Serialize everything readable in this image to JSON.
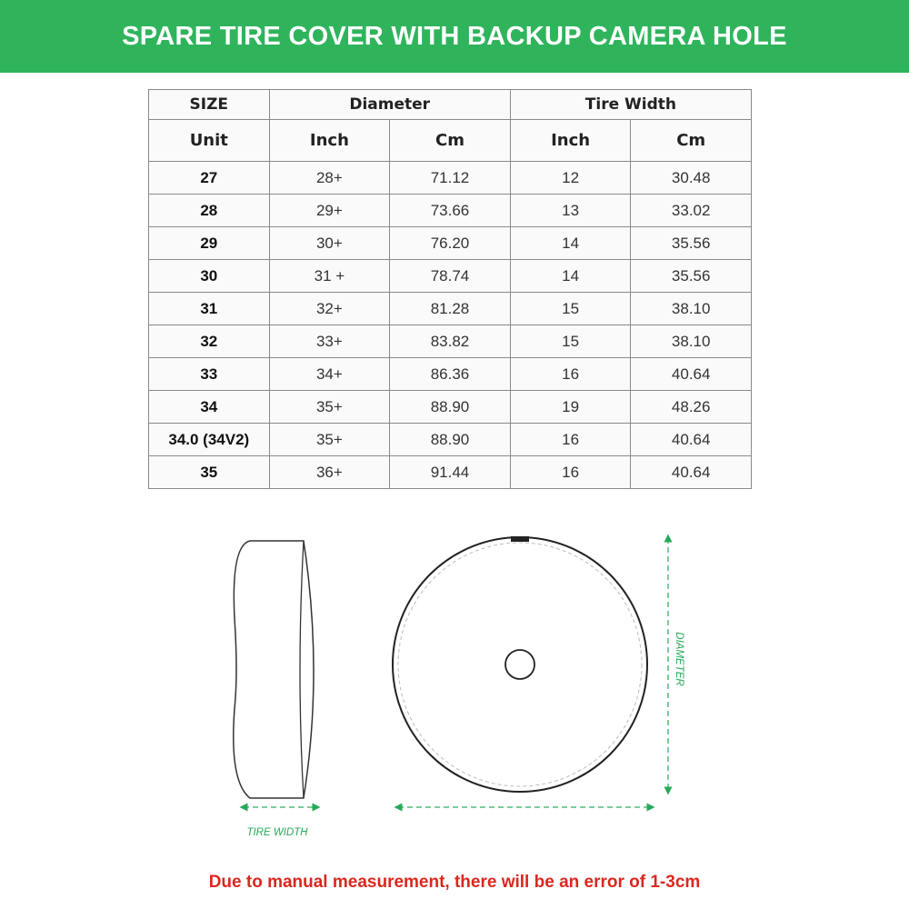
{
  "banner": {
    "title": "SPARE TIRE COVER WITH BACKUP CAMERA HOLE"
  },
  "colors": {
    "brand_green": "#2fb45c",
    "accent_green": "#27a85a",
    "note_red": "#d9281f"
  },
  "table": {
    "group_headers": [
      "SIZE",
      "Diameter",
      "Tire Width"
    ],
    "sub_headers": [
      "Unit",
      "Inch",
      "Cm",
      "Inch",
      "Cm"
    ],
    "rows": [
      [
        "27",
        "28+",
        "71.12",
        "12",
        "30.48"
      ],
      [
        "28",
        "29+",
        "73.66",
        "13",
        "33.02"
      ],
      [
        "29",
        "30+",
        "76.20",
        "14",
        "35.56"
      ],
      [
        "30",
        "31 +",
        "78.74",
        "14",
        "35.56"
      ],
      [
        "31",
        "32+",
        "81.28",
        "15",
        "38.10"
      ],
      [
        "32",
        "33+",
        "83.82",
        "15",
        "38.10"
      ],
      [
        "33",
        "34+",
        "86.36",
        "16",
        "40.64"
      ],
      [
        "34",
        "35+",
        "88.90",
        "19",
        "48.26"
      ],
      [
        "34.0 (34V2)",
        "35+",
        "88.90",
        "16",
        "40.64"
      ],
      [
        "35",
        "36+",
        "91.44",
        "16",
        "40.64"
      ]
    ]
  },
  "diagram": {
    "tire_width_label": "TIRE WIDTH",
    "diameter_label": "DIAMETER"
  },
  "note": "Due to manual measurement, there will be an error of 1-3cm"
}
